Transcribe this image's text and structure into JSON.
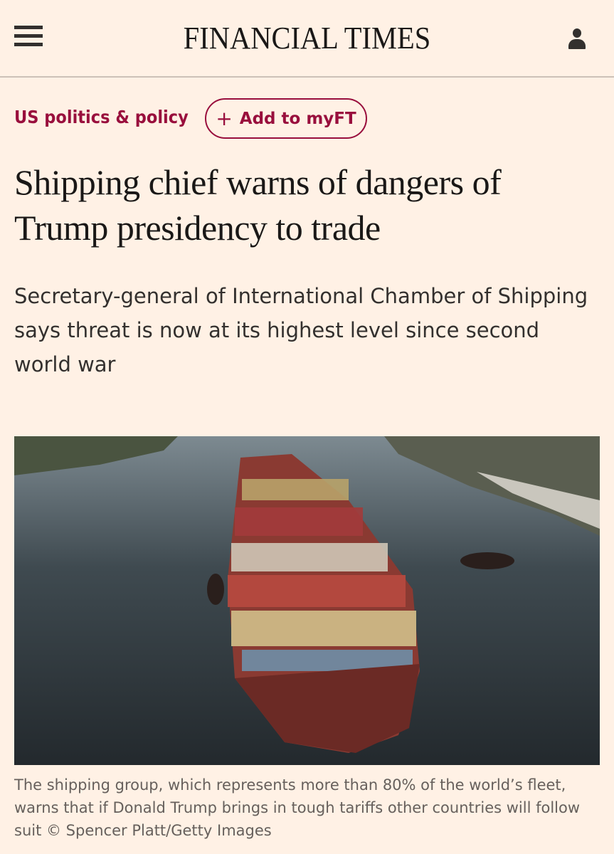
{
  "header": {
    "logo": "FINANCIAL TIMES",
    "menu_icon": "hamburger-icon",
    "account_icon": "user-icon"
  },
  "article": {
    "topic": "US politics & policy",
    "myft_plus": "+",
    "myft_label": "Add to myFT",
    "headline": "Shipping chief warns of dangers of Trump presidency to trade",
    "standfirst": "Secretary-general of International Chamber of Shipping says threat is now at its highest level since second world war",
    "caption": "The shipping group, which represents more than 80% of the world’s fleet, warns that if Donald Trump brings in tough tariffs other countries will follow suit © Spencer Platt/Getty Images"
  },
  "colors": {
    "background": "#fff1e5",
    "accent": "#990f3d",
    "text": "#33302e"
  }
}
